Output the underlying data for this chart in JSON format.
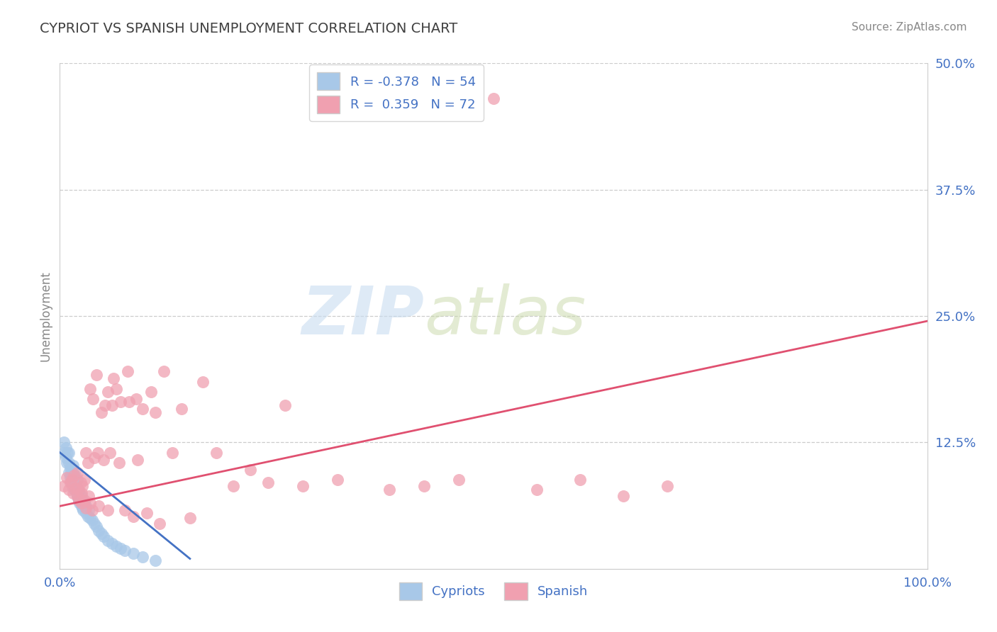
{
  "title": "CYPRIOT VS SPANISH UNEMPLOYMENT CORRELATION CHART",
  "source_text": "Source: ZipAtlas.com",
  "xlabel": "",
  "ylabel": "Unemployment",
  "x_min": 0.0,
  "x_max": 1.0,
  "y_min": 0.0,
  "y_max": 0.5,
  "x_ticks": [
    0.0,
    1.0
  ],
  "x_tick_labels": [
    "0.0%",
    "100.0%"
  ],
  "y_ticks": [
    0.0,
    0.125,
    0.25,
    0.375,
    0.5
  ],
  "y_tick_labels": [
    "",
    "12.5%",
    "25.0%",
    "37.5%",
    "50.0%"
  ],
  "blue_color": "#A8C8E8",
  "pink_color": "#F0A0B0",
  "blue_line_color": "#4472C4",
  "pink_line_color": "#E05070",
  "title_color": "#404040",
  "axis_label_color": "#4472C4",
  "legend_R1": "R = -0.378",
  "legend_N1": "N = 54",
  "legend_R2": "R =  0.359",
  "legend_N2": "N = 72",
  "watermark_zip": "ZIP",
  "watermark_atlas": "atlas",
  "blue_scatter_x": [
    0.005,
    0.005,
    0.007,
    0.007,
    0.008,
    0.009,
    0.01,
    0.01,
    0.01,
    0.012,
    0.012,
    0.013,
    0.013,
    0.015,
    0.015,
    0.015,
    0.015,
    0.016,
    0.017,
    0.018,
    0.018,
    0.019,
    0.02,
    0.02,
    0.02,
    0.021,
    0.021,
    0.022,
    0.022,
    0.023,
    0.025,
    0.025,
    0.026,
    0.027,
    0.028,
    0.03,
    0.03,
    0.032,
    0.033,
    0.035,
    0.037,
    0.04,
    0.042,
    0.045,
    0.048,
    0.05,
    0.055,
    0.06,
    0.065,
    0.07,
    0.075,
    0.085,
    0.095,
    0.11
  ],
  "blue_scatter_y": [
    0.115,
    0.125,
    0.11,
    0.12,
    0.105,
    0.115,
    0.095,
    0.105,
    0.115,
    0.09,
    0.1,
    0.085,
    0.095,
    0.08,
    0.088,
    0.095,
    0.102,
    0.085,
    0.078,
    0.082,
    0.092,
    0.075,
    0.072,
    0.08,
    0.088,
    0.07,
    0.078,
    0.068,
    0.076,
    0.065,
    0.062,
    0.072,
    0.06,
    0.058,
    0.065,
    0.055,
    0.062,
    0.052,
    0.058,
    0.05,
    0.048,
    0.045,
    0.042,
    0.038,
    0.035,
    0.032,
    0.028,
    0.025,
    0.022,
    0.02,
    0.018,
    0.015,
    0.012,
    0.008
  ],
  "pink_scatter_x": [
    0.005,
    0.008,
    0.01,
    0.012,
    0.014,
    0.015,
    0.016,
    0.018,
    0.02,
    0.02,
    0.022,
    0.022,
    0.024,
    0.025,
    0.025,
    0.026,
    0.028,
    0.028,
    0.03,
    0.03,
    0.032,
    0.033,
    0.035,
    0.035,
    0.037,
    0.038,
    0.04,
    0.042,
    0.044,
    0.045,
    0.048,
    0.05,
    0.052,
    0.055,
    0.055,
    0.058,
    0.06,
    0.062,
    0.065,
    0.068,
    0.07,
    0.075,
    0.078,
    0.08,
    0.085,
    0.088,
    0.09,
    0.095,
    0.1,
    0.105,
    0.11,
    0.115,
    0.12,
    0.13,
    0.14,
    0.15,
    0.165,
    0.18,
    0.2,
    0.22,
    0.24,
    0.26,
    0.28,
    0.32,
    0.38,
    0.42,
    0.46,
    0.5,
    0.55,
    0.6,
    0.65,
    0.7
  ],
  "pink_scatter_y": [
    0.082,
    0.09,
    0.078,
    0.085,
    0.088,
    0.075,
    0.092,
    0.08,
    0.072,
    0.095,
    0.068,
    0.078,
    0.085,
    0.065,
    0.075,
    0.082,
    0.068,
    0.088,
    0.06,
    0.115,
    0.105,
    0.072,
    0.065,
    0.178,
    0.058,
    0.168,
    0.11,
    0.192,
    0.115,
    0.062,
    0.155,
    0.108,
    0.162,
    0.058,
    0.175,
    0.115,
    0.162,
    0.188,
    0.178,
    0.105,
    0.165,
    0.058,
    0.195,
    0.165,
    0.052,
    0.168,
    0.108,
    0.158,
    0.055,
    0.175,
    0.155,
    0.045,
    0.195,
    0.115,
    0.158,
    0.05,
    0.185,
    0.115,
    0.082,
    0.098,
    0.085,
    0.162,
    0.082,
    0.088,
    0.078,
    0.082,
    0.088,
    0.465,
    0.078,
    0.088,
    0.072,
    0.082
  ],
  "blue_line_x": [
    0.0,
    0.15
  ],
  "blue_line_y": [
    0.115,
    0.01
  ],
  "pink_line_x": [
    0.0,
    1.0
  ],
  "pink_line_y": [
    0.062,
    0.245
  ]
}
